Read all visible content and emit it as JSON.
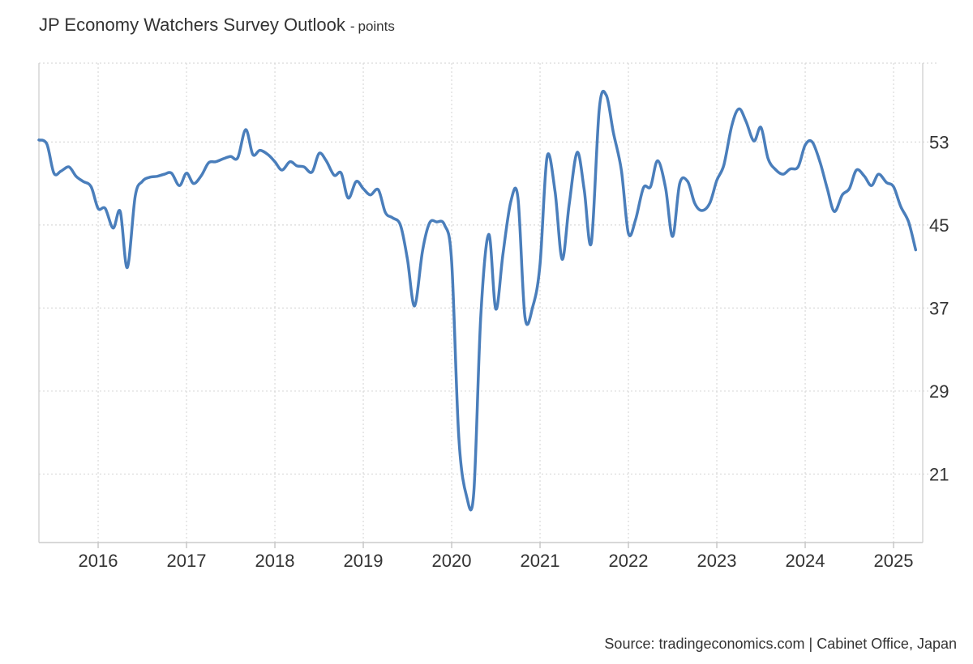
{
  "chart_data": {
    "type": "line",
    "title": "JP Economy Watchers Survey Outlook",
    "title_separator": "-",
    "units": "points",
    "source": "Source: tradingeconomics.com | Cabinet Office, Japan",
    "line_color": "#4a7ebb",
    "grid": true,
    "y_axis_position": "right",
    "xlim": [
      2015.33,
      2025.33
    ],
    "ylim": [
      14.4,
      60.6
    ],
    "x_ticks": [
      {
        "value": 2016,
        "label": "2016"
      },
      {
        "value": 2017,
        "label": "2017"
      },
      {
        "value": 2018,
        "label": "2018"
      },
      {
        "value": 2019,
        "label": "2019"
      },
      {
        "value": 2020,
        "label": "2020"
      },
      {
        "value": 2021,
        "label": "2021"
      },
      {
        "value": 2022,
        "label": "2022"
      },
      {
        "value": 2023,
        "label": "2023"
      },
      {
        "value": 2024,
        "label": "2024"
      },
      {
        "value": 2025,
        "label": "2025"
      }
    ],
    "y_ticks": [
      {
        "value": 53,
        "label": "53"
      },
      {
        "value": 45,
        "label": "45"
      },
      {
        "value": 37,
        "label": "37"
      },
      {
        "value": 29,
        "label": "29"
      },
      {
        "value": 21,
        "label": "21"
      }
    ],
    "series": [
      {
        "points": [
          [
            2015.33,
            53.2
          ],
          [
            2015.42,
            52.8
          ],
          [
            2015.5,
            50.0
          ],
          [
            2015.58,
            50.2
          ],
          [
            2015.67,
            50.6
          ],
          [
            2015.75,
            49.7
          ],
          [
            2015.83,
            49.2
          ],
          [
            2015.92,
            48.7
          ],
          [
            2016.0,
            46.6
          ],
          [
            2016.08,
            46.6
          ],
          [
            2016.17,
            44.7
          ],
          [
            2016.25,
            46.3
          ],
          [
            2016.33,
            40.9
          ],
          [
            2016.42,
            47.8
          ],
          [
            2016.5,
            49.2
          ],
          [
            2016.58,
            49.6
          ],
          [
            2016.67,
            49.7
          ],
          [
            2016.75,
            49.9
          ],
          [
            2016.83,
            50.0
          ],
          [
            2016.92,
            48.8
          ],
          [
            2017.0,
            50.0
          ],
          [
            2017.08,
            49.0
          ],
          [
            2017.17,
            49.8
          ],
          [
            2017.25,
            51.0
          ],
          [
            2017.33,
            51.1
          ],
          [
            2017.42,
            51.4
          ],
          [
            2017.5,
            51.6
          ],
          [
            2017.58,
            51.5
          ],
          [
            2017.67,
            54.2
          ],
          [
            2017.75,
            51.8
          ],
          [
            2017.83,
            52.2
          ],
          [
            2017.92,
            51.8
          ],
          [
            2018.0,
            51.1
          ],
          [
            2018.08,
            50.3
          ],
          [
            2018.17,
            51.1
          ],
          [
            2018.25,
            50.7
          ],
          [
            2018.33,
            50.6
          ],
          [
            2018.42,
            50.1
          ],
          [
            2018.5,
            51.9
          ],
          [
            2018.58,
            51.2
          ],
          [
            2018.67,
            49.8
          ],
          [
            2018.75,
            50.0
          ],
          [
            2018.83,
            47.6
          ],
          [
            2018.92,
            49.2
          ],
          [
            2019.0,
            48.5
          ],
          [
            2019.08,
            47.9
          ],
          [
            2019.17,
            48.4
          ],
          [
            2019.25,
            46.2
          ],
          [
            2019.33,
            45.7
          ],
          [
            2019.42,
            45.0
          ],
          [
            2019.5,
            41.7
          ],
          [
            2019.58,
            37.2
          ],
          [
            2019.67,
            42.5
          ],
          [
            2019.75,
            45.2
          ],
          [
            2019.83,
            45.3
          ],
          [
            2019.92,
            45.0
          ],
          [
            2020.0,
            41.5
          ],
          [
            2020.08,
            24.6
          ],
          [
            2020.17,
            18.8
          ],
          [
            2020.25,
            19.2
          ],
          [
            2020.33,
            36.3
          ],
          [
            2020.42,
            44.1
          ],
          [
            2020.5,
            36.9
          ],
          [
            2020.58,
            42.2
          ],
          [
            2020.67,
            47.3
          ],
          [
            2020.75,
            47.6
          ],
          [
            2020.83,
            36.1
          ],
          [
            2020.92,
            37.2
          ],
          [
            2021.0,
            41.2
          ],
          [
            2021.08,
            51.6
          ],
          [
            2021.17,
            48.2
          ],
          [
            2021.25,
            41.7
          ],
          [
            2021.33,
            47.0
          ],
          [
            2021.42,
            52.0
          ],
          [
            2021.5,
            48.4
          ],
          [
            2021.58,
            43.3
          ],
          [
            2021.67,
            56.2
          ],
          [
            2021.75,
            57.5
          ],
          [
            2021.83,
            53.9
          ],
          [
            2021.92,
            50.3
          ],
          [
            2022.0,
            44.2
          ],
          [
            2022.08,
            45.5
          ],
          [
            2022.17,
            48.6
          ],
          [
            2022.25,
            48.7
          ],
          [
            2022.33,
            51.2
          ],
          [
            2022.42,
            48.6
          ],
          [
            2022.5,
            43.9
          ],
          [
            2022.58,
            49.0
          ],
          [
            2022.67,
            49.2
          ],
          [
            2022.75,
            47.1
          ],
          [
            2022.83,
            46.4
          ],
          [
            2022.92,
            47.1
          ],
          [
            2023.0,
            49.3
          ],
          [
            2023.08,
            50.8
          ],
          [
            2023.17,
            54.6
          ],
          [
            2023.25,
            56.2
          ],
          [
            2023.33,
            55.0
          ],
          [
            2023.42,
            53.1
          ],
          [
            2023.5,
            54.4
          ],
          [
            2023.58,
            51.4
          ],
          [
            2023.67,
            50.3
          ],
          [
            2023.75,
            49.9
          ],
          [
            2023.83,
            50.4
          ],
          [
            2023.92,
            50.6
          ],
          [
            2024.0,
            52.7
          ],
          [
            2024.08,
            53.0
          ],
          [
            2024.17,
            51.0
          ],
          [
            2024.25,
            48.5
          ],
          [
            2024.33,
            46.3
          ],
          [
            2024.42,
            47.9
          ],
          [
            2024.5,
            48.5
          ],
          [
            2024.58,
            50.3
          ],
          [
            2024.67,
            49.7
          ],
          [
            2024.75,
            48.8
          ],
          [
            2024.83,
            49.9
          ],
          [
            2024.92,
            49.1
          ],
          [
            2025.0,
            48.7
          ],
          [
            2025.08,
            46.8
          ],
          [
            2025.17,
            45.3
          ],
          [
            2025.25,
            42.6
          ]
        ]
      }
    ]
  }
}
